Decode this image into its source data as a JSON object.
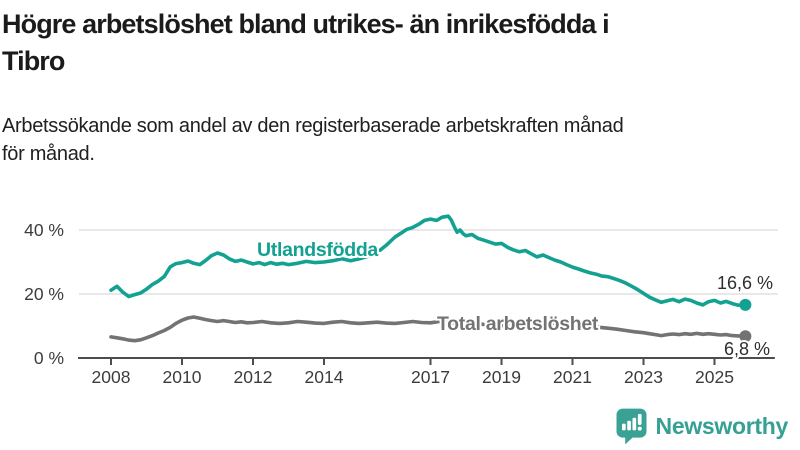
{
  "header": {
    "title_lines": [
      "Högre arbetslöshet bland utrikes- än inrikesfödda i",
      "Tibro"
    ],
    "subtitle_lines": [
      "Arbetssökande som andel av den registerbaserade arbetskraften månad",
      "för månad."
    ]
  },
  "chart_data": {
    "type": "line",
    "title": "Högre arbetslöshet bland utrikes- än inrikesfödda i Tibro",
    "subtitle": "Arbetssökande som andel av den registerbaserade arbetskraften månad för månad.",
    "x_unit": "decimal_year",
    "y_unit": "percent",
    "xlim": [
      2007.07,
      2026.7
    ],
    "ylim": [
      0,
      52
    ],
    "grid": "horizontal",
    "legend_position": "inline-labels",
    "colors": {
      "axis": "#4d4d4d",
      "gridline": "#d9d9d9",
      "tick_text": "#3c3c3c",
      "value_label_text": "#2e2e2e"
    },
    "x_axis": {
      "ticks": [
        {
          "x": 2008,
          "label": "2008"
        },
        {
          "x": 2010,
          "label": "2010"
        },
        {
          "x": 2012,
          "label": "2012"
        },
        {
          "x": 2014,
          "label": "2014"
        },
        {
          "x": 2017,
          "label": "2017"
        },
        {
          "x": 2019,
          "label": "2019"
        },
        {
          "x": 2021,
          "label": "2021"
        },
        {
          "x": 2023,
          "label": "2023"
        },
        {
          "x": 2025,
          "label": "2025"
        }
      ]
    },
    "y_axis": {
      "ticks": [
        {
          "v": 0,
          "label": "0 %"
        },
        {
          "v": 20,
          "label": "20 %"
        },
        {
          "v": 40,
          "label": "40 %"
        }
      ],
      "gridline_values": [
        20,
        40
      ]
    },
    "series": [
      {
        "name": "Utlandsfödda",
        "color": "#13a191",
        "end_label": "16,6 %",
        "last_value": 16.6,
        "points": [
          [
            2008.0,
            21.2
          ],
          [
            2008.17,
            22.4
          ],
          [
            2008.33,
            20.6
          ],
          [
            2008.5,
            19.2
          ],
          [
            2008.67,
            19.8
          ],
          [
            2008.83,
            20.3
          ],
          [
            2009.0,
            21.5
          ],
          [
            2009.17,
            23.0
          ],
          [
            2009.33,
            24.0
          ],
          [
            2009.5,
            25.5
          ],
          [
            2009.67,
            28.5
          ],
          [
            2009.83,
            29.5
          ],
          [
            2010.0,
            29.8
          ],
          [
            2010.17,
            30.3
          ],
          [
            2010.33,
            29.6
          ],
          [
            2010.5,
            29.2
          ],
          [
            2010.67,
            30.5
          ],
          [
            2010.83,
            32.0
          ],
          [
            2011.0,
            32.8
          ],
          [
            2011.17,
            32.2
          ],
          [
            2011.33,
            31.0
          ],
          [
            2011.5,
            30.2
          ],
          [
            2011.67,
            30.6
          ],
          [
            2011.83,
            30.0
          ],
          [
            2012.0,
            29.4
          ],
          [
            2012.17,
            29.8
          ],
          [
            2012.33,
            29.2
          ],
          [
            2012.5,
            29.8
          ],
          [
            2012.67,
            29.3
          ],
          [
            2012.83,
            29.6
          ],
          [
            2013.0,
            29.2
          ],
          [
            2013.25,
            29.6
          ],
          [
            2013.5,
            30.2
          ],
          [
            2013.75,
            29.8
          ],
          [
            2014.0,
            30.0
          ],
          [
            2014.25,
            30.4
          ],
          [
            2014.5,
            31.0
          ],
          [
            2014.75,
            30.4
          ],
          [
            2015.0,
            31.0
          ],
          [
            2015.25,
            31.8
          ],
          [
            2015.5,
            33.0
          ],
          [
            2015.75,
            35.2
          ],
          [
            2016.0,
            37.8
          ],
          [
            2016.17,
            39.0
          ],
          [
            2016.33,
            40.2
          ],
          [
            2016.5,
            40.8
          ],
          [
            2016.67,
            41.8
          ],
          [
            2016.83,
            43.0
          ],
          [
            2017.0,
            43.4
          ],
          [
            2017.17,
            43.0
          ],
          [
            2017.33,
            44.0
          ],
          [
            2017.5,
            44.3
          ],
          [
            2017.58,
            43.2
          ],
          [
            2017.67,
            41.0
          ],
          [
            2017.75,
            39.3
          ],
          [
            2017.83,
            40.0
          ],
          [
            2017.92,
            38.8
          ],
          [
            2018.0,
            38.2
          ],
          [
            2018.17,
            38.6
          ],
          [
            2018.33,
            37.4
          ],
          [
            2018.5,
            36.8
          ],
          [
            2018.67,
            36.2
          ],
          [
            2018.83,
            35.6
          ],
          [
            2019.0,
            35.8
          ],
          [
            2019.17,
            34.6
          ],
          [
            2019.33,
            33.8
          ],
          [
            2019.5,
            33.2
          ],
          [
            2019.67,
            33.6
          ],
          [
            2019.83,
            32.6
          ],
          [
            2020.0,
            31.6
          ],
          [
            2020.17,
            32.2
          ],
          [
            2020.33,
            31.4
          ],
          [
            2020.5,
            30.6
          ],
          [
            2020.67,
            30.0
          ],
          [
            2020.83,
            29.2
          ],
          [
            2021.0,
            28.4
          ],
          [
            2021.17,
            27.8
          ],
          [
            2021.33,
            27.2
          ],
          [
            2021.5,
            26.6
          ],
          [
            2021.67,
            26.2
          ],
          [
            2021.83,
            25.6
          ],
          [
            2022.0,
            25.4
          ],
          [
            2022.17,
            24.8
          ],
          [
            2022.33,
            24.2
          ],
          [
            2022.5,
            23.4
          ],
          [
            2022.67,
            22.4
          ],
          [
            2022.83,
            21.4
          ],
          [
            2023.0,
            20.2
          ],
          [
            2023.17,
            19.0
          ],
          [
            2023.33,
            18.2
          ],
          [
            2023.5,
            17.4
          ],
          [
            2023.67,
            17.9
          ],
          [
            2023.83,
            18.3
          ],
          [
            2024.0,
            17.6
          ],
          [
            2024.17,
            18.4
          ],
          [
            2024.33,
            18.0
          ],
          [
            2024.5,
            17.2
          ],
          [
            2024.67,
            16.6
          ],
          [
            2024.83,
            17.6
          ],
          [
            2025.0,
            18.0
          ],
          [
            2025.17,
            17.2
          ],
          [
            2025.33,
            17.7
          ],
          [
            2025.5,
            17.0
          ],
          [
            2025.67,
            16.5
          ],
          [
            2025.87,
            16.6
          ]
        ]
      },
      {
        "name": "Total arbetslöshet",
        "color": "#737373",
        "end_label": "6,8 %",
        "last_value": 6.8,
        "points": [
          [
            2008.0,
            6.6
          ],
          [
            2008.17,
            6.3
          ],
          [
            2008.33,
            6.0
          ],
          [
            2008.5,
            5.6
          ],
          [
            2008.67,
            5.4
          ],
          [
            2008.83,
            5.7
          ],
          [
            2009.0,
            6.3
          ],
          [
            2009.17,
            7.0
          ],
          [
            2009.33,
            7.8
          ],
          [
            2009.5,
            8.6
          ],
          [
            2009.67,
            9.6
          ],
          [
            2009.83,
            10.8
          ],
          [
            2010.0,
            11.8
          ],
          [
            2010.17,
            12.5
          ],
          [
            2010.33,
            12.8
          ],
          [
            2010.5,
            12.4
          ],
          [
            2010.67,
            12.0
          ],
          [
            2010.83,
            11.7
          ],
          [
            2011.0,
            11.4
          ],
          [
            2011.17,
            11.7
          ],
          [
            2011.33,
            11.4
          ],
          [
            2011.5,
            11.1
          ],
          [
            2011.67,
            11.3
          ],
          [
            2011.83,
            11.0
          ],
          [
            2012.0,
            11.1
          ],
          [
            2012.25,
            11.4
          ],
          [
            2012.5,
            11.0
          ],
          [
            2012.75,
            10.8
          ],
          [
            2013.0,
            11.0
          ],
          [
            2013.25,
            11.4
          ],
          [
            2013.5,
            11.2
          ],
          [
            2013.75,
            10.9
          ],
          [
            2014.0,
            10.8
          ],
          [
            2014.25,
            11.2
          ],
          [
            2014.5,
            11.4
          ],
          [
            2014.75,
            11.0
          ],
          [
            2015.0,
            10.8
          ],
          [
            2015.25,
            11.0
          ],
          [
            2015.5,
            11.2
          ],
          [
            2015.75,
            10.9
          ],
          [
            2016.0,
            10.8
          ],
          [
            2016.25,
            11.1
          ],
          [
            2016.5,
            11.4
          ],
          [
            2016.75,
            11.1
          ],
          [
            2017.0,
            11.0
          ],
          [
            2017.25,
            11.4
          ],
          [
            2017.5,
            11.2
          ],
          [
            2017.75,
            10.8
          ],
          [
            2018.0,
            10.6
          ],
          [
            2018.25,
            10.8
          ],
          [
            2018.5,
            10.5
          ],
          [
            2018.75,
            10.3
          ],
          [
            2019.0,
            10.1
          ],
          [
            2019.25,
            10.4
          ],
          [
            2019.5,
            10.6
          ],
          [
            2019.75,
            10.3
          ],
          [
            2020.0,
            10.2
          ],
          [
            2020.25,
            10.7
          ],
          [
            2020.5,
            10.9
          ],
          [
            2020.75,
            10.5
          ],
          [
            2021.0,
            10.3
          ],
          [
            2021.25,
            10.4
          ],
          [
            2021.5,
            10.0
          ],
          [
            2021.75,
            9.6
          ],
          [
            2022.0,
            9.3
          ],
          [
            2022.25,
            9.0
          ],
          [
            2022.5,
            8.6
          ],
          [
            2022.75,
            8.2
          ],
          [
            2023.0,
            7.9
          ],
          [
            2023.17,
            7.6
          ],
          [
            2023.33,
            7.3
          ],
          [
            2023.5,
            7.0
          ],
          [
            2023.67,
            7.3
          ],
          [
            2023.83,
            7.5
          ],
          [
            2024.0,
            7.3
          ],
          [
            2024.17,
            7.6
          ],
          [
            2024.33,
            7.4
          ],
          [
            2024.5,
            7.7
          ],
          [
            2024.67,
            7.4
          ],
          [
            2024.83,
            7.6
          ],
          [
            2025.0,
            7.4
          ],
          [
            2025.17,
            7.2
          ],
          [
            2025.33,
            7.3
          ],
          [
            2025.5,
            7.0
          ],
          [
            2025.67,
            6.9
          ],
          [
            2025.87,
            6.8
          ]
        ]
      }
    ]
  },
  "branding": {
    "logo_text": "Newsworthy",
    "logo_text_color": "#35a093",
    "logo_icon_color": "#3aa294",
    "logo_icon": "bar-chart-speech-bubble"
  }
}
